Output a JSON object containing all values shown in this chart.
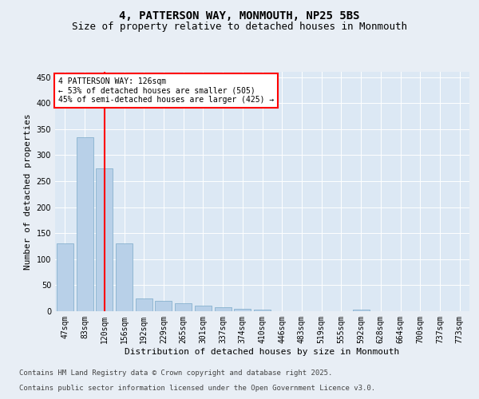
{
  "title1": "4, PATTERSON WAY, MONMOUTH, NP25 5BS",
  "title2": "Size of property relative to detached houses in Monmouth",
  "xlabel": "Distribution of detached houses by size in Monmouth",
  "ylabel": "Number of detached properties",
  "categories": [
    "47sqm",
    "83sqm",
    "120sqm",
    "156sqm",
    "192sqm",
    "229sqm",
    "265sqm",
    "301sqm",
    "337sqm",
    "374sqm",
    "410sqm",
    "446sqm",
    "483sqm",
    "519sqm",
    "555sqm",
    "592sqm",
    "628sqm",
    "664sqm",
    "700sqm",
    "737sqm",
    "773sqm"
  ],
  "values": [
    130,
    335,
    275,
    130,
    25,
    20,
    15,
    10,
    7,
    5,
    3,
    0,
    0,
    0,
    0,
    3,
    0,
    0,
    0,
    0,
    0
  ],
  "bar_color": "#b8d0e8",
  "bar_edge_color": "#7aaac8",
  "vline_x": 2,
  "vline_color": "red",
  "annotation_text": "4 PATTERSON WAY: 126sqm\n← 53% of detached houses are smaller (505)\n45% of semi-detached houses are larger (425) →",
  "annotation_box_color": "white",
  "annotation_box_edge_color": "red",
  "ylim": [
    0,
    460
  ],
  "yticks": [
    0,
    50,
    100,
    150,
    200,
    250,
    300,
    350,
    400,
    450
  ],
  "bg_color": "#e8eef5",
  "plot_bg_color": "#dce8f4",
  "footer1": "Contains HM Land Registry data © Crown copyright and database right 2025.",
  "footer2": "Contains public sector information licensed under the Open Government Licence v3.0.",
  "title1_fontsize": 10,
  "title2_fontsize": 9,
  "axis_label_fontsize": 8,
  "tick_fontsize": 7,
  "footer_fontsize": 6.5,
  "annot_fontsize": 7
}
